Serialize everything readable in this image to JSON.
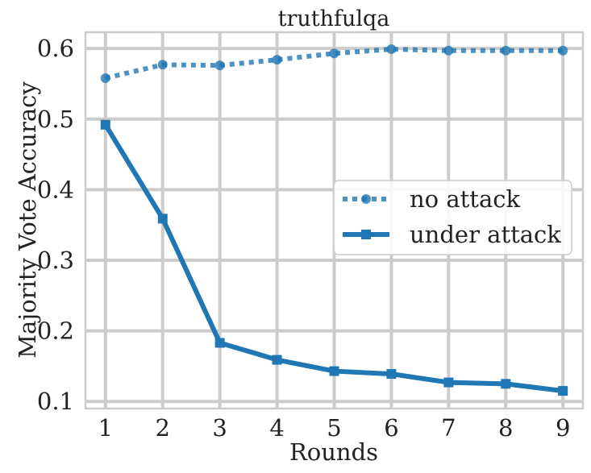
{
  "chart_data": {
    "type": "line",
    "title": "truthfulqa",
    "xlabel": "Rounds",
    "ylabel": "Majority Vote Accuracy",
    "x": [
      1,
      2,
      3,
      4,
      5,
      6,
      7,
      8,
      9
    ],
    "xticks": [
      "1",
      "2",
      "3",
      "4",
      "5",
      "6",
      "7",
      "8",
      "9"
    ],
    "yticks": [
      "0.1",
      "0.2",
      "0.3",
      "0.4",
      "0.5",
      "0.6"
    ],
    "ytick_values": [
      0.1,
      0.2,
      0.3,
      0.4,
      0.5,
      0.6
    ],
    "xlim": [
      0.65,
      9.35
    ],
    "ylim": [
      0.09,
      0.623
    ],
    "grid": true,
    "legend_position": "center-right",
    "series": [
      {
        "name": "no attack",
        "values": [
          0.558,
          0.577,
          0.576,
          0.584,
          0.593,
          0.599,
          0.597,
          0.597,
          0.597
        ],
        "color": "#1f77b4",
        "line_style": "dotted",
        "marker": "circle"
      },
      {
        "name": "under attack",
        "values": [
          0.492,
          0.359,
          0.183,
          0.159,
          0.143,
          0.139,
          0.127,
          0.125,
          0.115
        ],
        "color": "#1f77b4",
        "line_style": "solid",
        "marker": "square"
      }
    ]
  }
}
